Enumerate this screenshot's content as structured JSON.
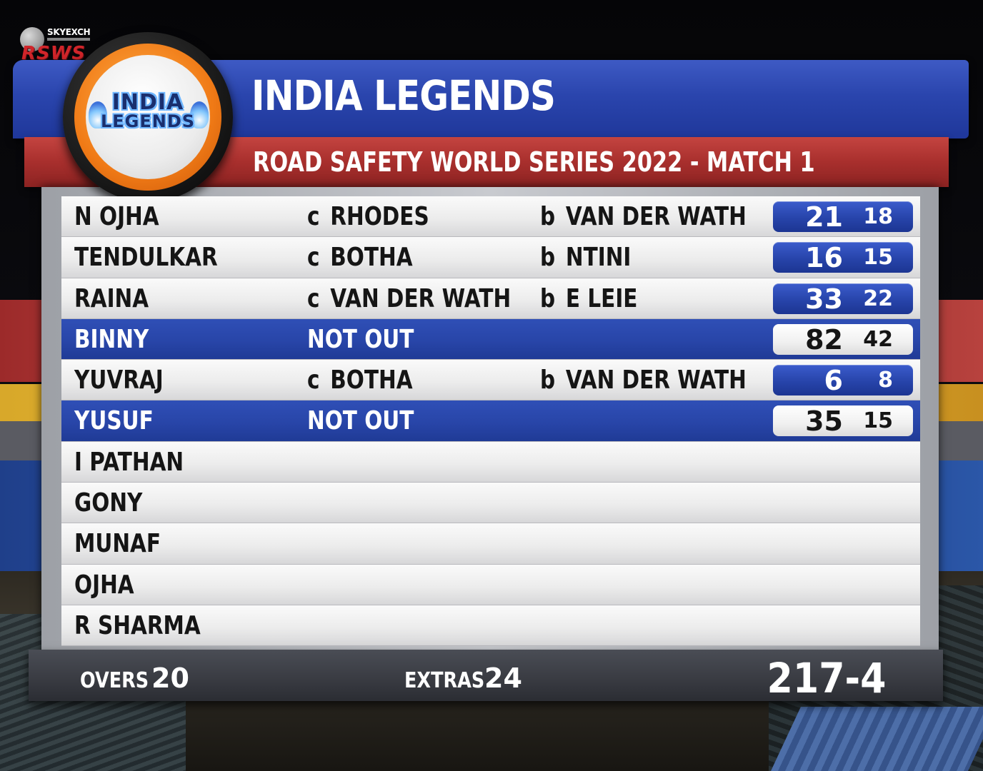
{
  "broadcaster": {
    "sponsor": "SKYEXCH",
    "logo_text": "RSWS"
  },
  "team": {
    "name": "INDIA LEGENDS",
    "badge_line1": "INDIA",
    "badge_line2": "LEGENDS"
  },
  "match": {
    "title": "ROAD SAFETY WORLD SERIES 2022 - MATCH 1"
  },
  "batting": [
    {
      "name": "N OJHA",
      "dismissal_type": "c",
      "fielder": "RHODES",
      "bowled_label": "b",
      "bowler": "VAN DER WATH",
      "runs": "21",
      "balls": "18",
      "not_out": false
    },
    {
      "name": "TENDULKAR",
      "dismissal_type": "c",
      "fielder": "BOTHA",
      "bowled_label": "b",
      "bowler": "NTINI",
      "runs": "16",
      "balls": "15",
      "not_out": false
    },
    {
      "name": "RAINA",
      "dismissal_type": "c",
      "fielder": "VAN DER WATH",
      "bowled_label": "b",
      "bowler": "E LEIE",
      "runs": "33",
      "balls": "22",
      "not_out": false
    },
    {
      "name": "BINNY",
      "status": "NOT OUT",
      "runs": "82",
      "balls": "42",
      "not_out": true
    },
    {
      "name": "YUVRAJ",
      "dismissal_type": "c",
      "fielder": "BOTHA",
      "bowled_label": "b",
      "bowler": "VAN DER WATH",
      "runs": "6",
      "balls": "8",
      "not_out": false
    },
    {
      "name": "YUSUF",
      "status": "NOT OUT",
      "runs": "35",
      "balls": "15",
      "not_out": true
    },
    {
      "name": "I PATHAN"
    },
    {
      "name": "GONY"
    },
    {
      "name": "MUNAF"
    },
    {
      "name": "OJHA"
    },
    {
      "name": "R SHARMA"
    }
  ],
  "summary": {
    "overs_label": "OVERS",
    "overs": "20",
    "extras_label": "EXTRAS",
    "extras": "24",
    "total": "217-4"
  },
  "colors": {
    "title_blue": "#2a45ad",
    "subtitle_red": "#a82f2d",
    "active_row_blue": "#2845a8",
    "badge_orange": "#f07a16",
    "footer_grey": "#3a3c43"
  }
}
